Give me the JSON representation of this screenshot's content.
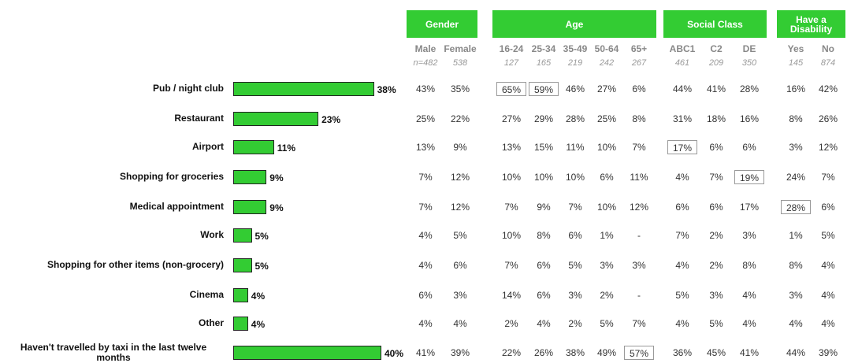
{
  "chart_data": {
    "type": "bar",
    "categories": [
      "Pub / night club",
      "Restaurant",
      "Airport",
      "Shopping for groceries",
      "Medical appointment",
      "Work",
      "Shopping for other items (non-grocery)",
      "Cinema",
      "Other",
      "Haven't travelled by taxi in the last twelve months"
    ],
    "values": [
      38,
      23,
      11,
      9,
      9,
      5,
      5,
      4,
      4,
      40
    ],
    "value_labels": [
      "38%",
      "23%",
      "11%",
      "9%",
      "9%",
      "5%",
      "5%",
      "4%",
      "4%",
      "40%"
    ],
    "color": "#33cc33"
  },
  "table": {
    "groups": [
      {
        "label": "Gender",
        "columns": [
          {
            "name": "Male",
            "n": "n=482"
          },
          {
            "name": "Female",
            "n": "538"
          }
        ]
      },
      {
        "label": "Age",
        "columns": [
          {
            "name": "16-24",
            "n": "127"
          },
          {
            "name": "25-34",
            "n": "165"
          },
          {
            "name": "35-49",
            "n": "219"
          },
          {
            "name": "50-64",
            "n": "242"
          },
          {
            "name": "65+",
            "n": "267"
          }
        ]
      },
      {
        "label": "Social Class",
        "columns": [
          {
            "name": "ABC1",
            "n": "461"
          },
          {
            "name": "C2",
            "n": "209"
          },
          {
            "name": "DE",
            "n": "350"
          }
        ]
      },
      {
        "label": "Have a Disability",
        "columns": [
          {
            "name": "Yes",
            "n": "145"
          },
          {
            "name": "No",
            "n": "874"
          }
        ]
      }
    ],
    "rows": [
      [
        "43%",
        "35%",
        "65%",
        "59%",
        "46%",
        "27%",
        "6%",
        "44%",
        "41%",
        "28%",
        "16%",
        "42%"
      ],
      [
        "25%",
        "22%",
        "27%",
        "29%",
        "28%",
        "25%",
        "8%",
        "31%",
        "18%",
        "16%",
        "8%",
        "26%"
      ],
      [
        "13%",
        "9%",
        "13%",
        "15%",
        "11%",
        "10%",
        "7%",
        "17%",
        "6%",
        "6%",
        "3%",
        "12%"
      ],
      [
        "7%",
        "12%",
        "10%",
        "10%",
        "10%",
        "6%",
        "11%",
        "4%",
        "7%",
        "19%",
        "24%",
        "7%"
      ],
      [
        "7%",
        "12%",
        "7%",
        "9%",
        "7%",
        "10%",
        "12%",
        "6%",
        "6%",
        "17%",
        "28%",
        "6%"
      ],
      [
        "4%",
        "5%",
        "10%",
        "8%",
        "6%",
        "1%",
        "-",
        "7%",
        "2%",
        "3%",
        "1%",
        "5%"
      ],
      [
        "4%",
        "6%",
        "7%",
        "6%",
        "5%",
        "3%",
        "3%",
        "4%",
        "2%",
        "8%",
        "8%",
        "4%"
      ],
      [
        "6%",
        "3%",
        "14%",
        "6%",
        "3%",
        "2%",
        "-",
        "5%",
        "3%",
        "4%",
        "3%",
        "4%"
      ],
      [
        "4%",
        "4%",
        "2%",
        "4%",
        "2%",
        "5%",
        "7%",
        "4%",
        "5%",
        "4%",
        "4%",
        "4%"
      ],
      [
        "41%",
        "39%",
        "22%",
        "26%",
        "38%",
        "49%",
        "57%",
        "36%",
        "45%",
        "41%",
        "44%",
        "39%"
      ]
    ],
    "highlighted": [
      [
        0,
        2
      ],
      [
        0,
        3
      ],
      [
        2,
        7
      ],
      [
        3,
        9
      ],
      [
        4,
        10
      ],
      [
        9,
        6
      ]
    ]
  }
}
